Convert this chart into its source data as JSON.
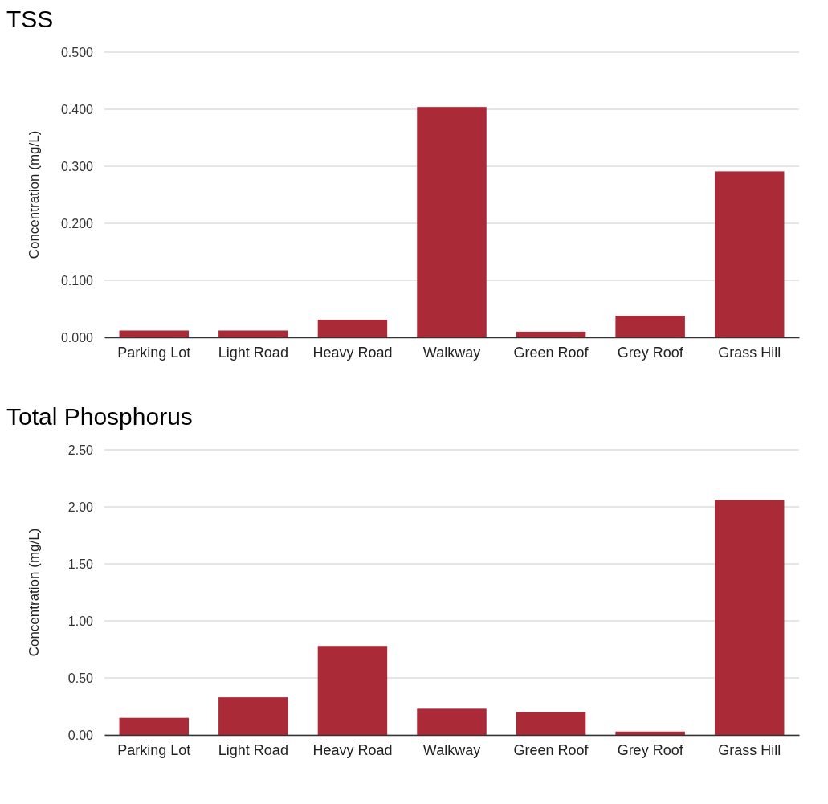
{
  "chart_data": [
    {
      "type": "bar",
      "title": "TSS",
      "ylabel": "Concentration (mg/L)",
      "categories": [
        "Parking Lot",
        "Light Road",
        "Heavy Road",
        "Walkway",
        "Green Roof",
        "Grey Roof",
        "Grass Hill"
      ],
      "series": [
        {
          "color": "#ab2a38",
          "values": [
            0.012,
            0.012,
            0.031,
            0.404,
            0.01,
            0.038,
            0.291
          ]
        }
      ],
      "ylim": [
        0,
        0.5
      ],
      "yticks": [
        {
          "value": 0,
          "label": "0.000"
        },
        {
          "value": 0.1,
          "label": "0.100"
        },
        {
          "value": 0.2,
          "label": "0.200"
        },
        {
          "value": 0.3,
          "label": "0.300"
        },
        {
          "value": 0.4,
          "label": "0.400"
        },
        {
          "value": 0.5,
          "label": "0.500"
        }
      ],
      "grid": "y"
    },
    {
      "type": "bar",
      "title": "Total Phosphorus",
      "ylabel": "Concentration (mg/L)",
      "categories": [
        "Parking Lot",
        "Light Road",
        "Heavy Road",
        "Walkway",
        "Green Roof",
        "Grey Roof",
        "Grass Hill"
      ],
      "series": [
        {
          "color": "#ab2a38",
          "values": [
            0.15,
            0.33,
            0.78,
            0.23,
            0.2,
            0.03,
            2.06
          ]
        }
      ],
      "ylim": [
        0,
        2.5
      ],
      "yticks": [
        {
          "value": 0,
          "label": "0.00"
        },
        {
          "value": 0.5,
          "label": "0.50"
        },
        {
          "value": 1,
          "label": "1.00"
        },
        {
          "value": 1.5,
          "label": "1.50"
        },
        {
          "value": 2,
          "label": "2.00"
        },
        {
          "value": 2.5,
          "label": "2.50"
        }
      ],
      "grid": "y"
    }
  ]
}
